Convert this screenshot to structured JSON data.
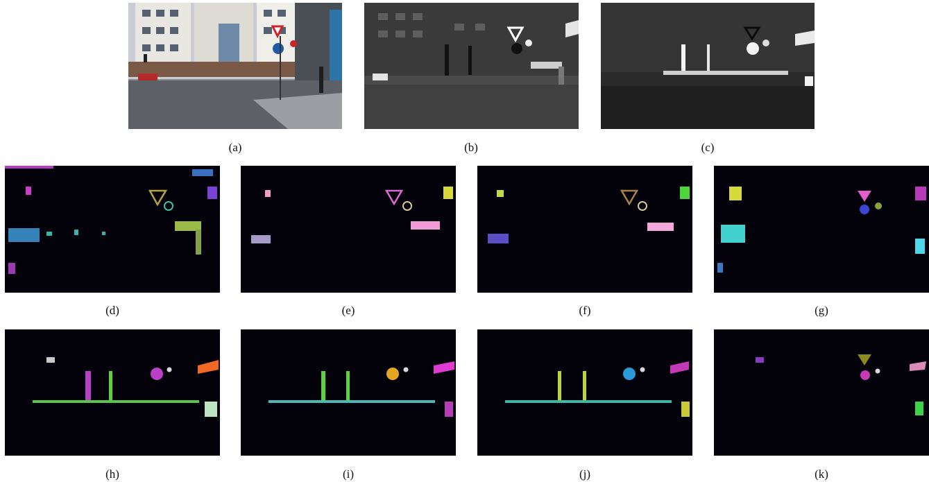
{
  "figure": {
    "panels": [
      {
        "id": "a",
        "caption": "(a)",
        "kind": "rgb-photo"
      },
      {
        "id": "b",
        "caption": "(b)",
        "kind": "grayscale-bright"
      },
      {
        "id": "c",
        "caption": "(c)",
        "kind": "grayscale-dark"
      },
      {
        "id": "d",
        "caption": "(d)",
        "kind": "segmentation",
        "accent": "#b8a14a",
        "circle": "#3fc1a8"
      },
      {
        "id": "e",
        "caption": "(e)",
        "kind": "segmentation",
        "accent": "#d96bd0",
        "circle": "#d7c7a0"
      },
      {
        "id": "f",
        "caption": "(f)",
        "kind": "segmentation",
        "accent": "#a98343",
        "circle": "#d7c7a0"
      },
      {
        "id": "g",
        "caption": "(g)",
        "kind": "segmentation-sparse",
        "accent": "#e05fc9",
        "circle": "#3b46d3"
      },
      {
        "id": "h",
        "caption": "(h)",
        "kind": "segmentation-poles",
        "accent": "#b93fc6",
        "circle": "#b93fc6"
      },
      {
        "id": "i",
        "caption": "(i)",
        "kind": "segmentation-poles",
        "accent": "#e3a61f",
        "circle": "#e3a61f"
      },
      {
        "id": "j",
        "caption": "(j)",
        "kind": "segmentation-poles",
        "accent": "#2c9ad8",
        "circle": "#2c9ad8"
      },
      {
        "id": "k",
        "caption": "(k)",
        "kind": "segmentation-sparse",
        "accent": "#8c8a20",
        "circle": "#c53ab5"
      }
    ]
  }
}
